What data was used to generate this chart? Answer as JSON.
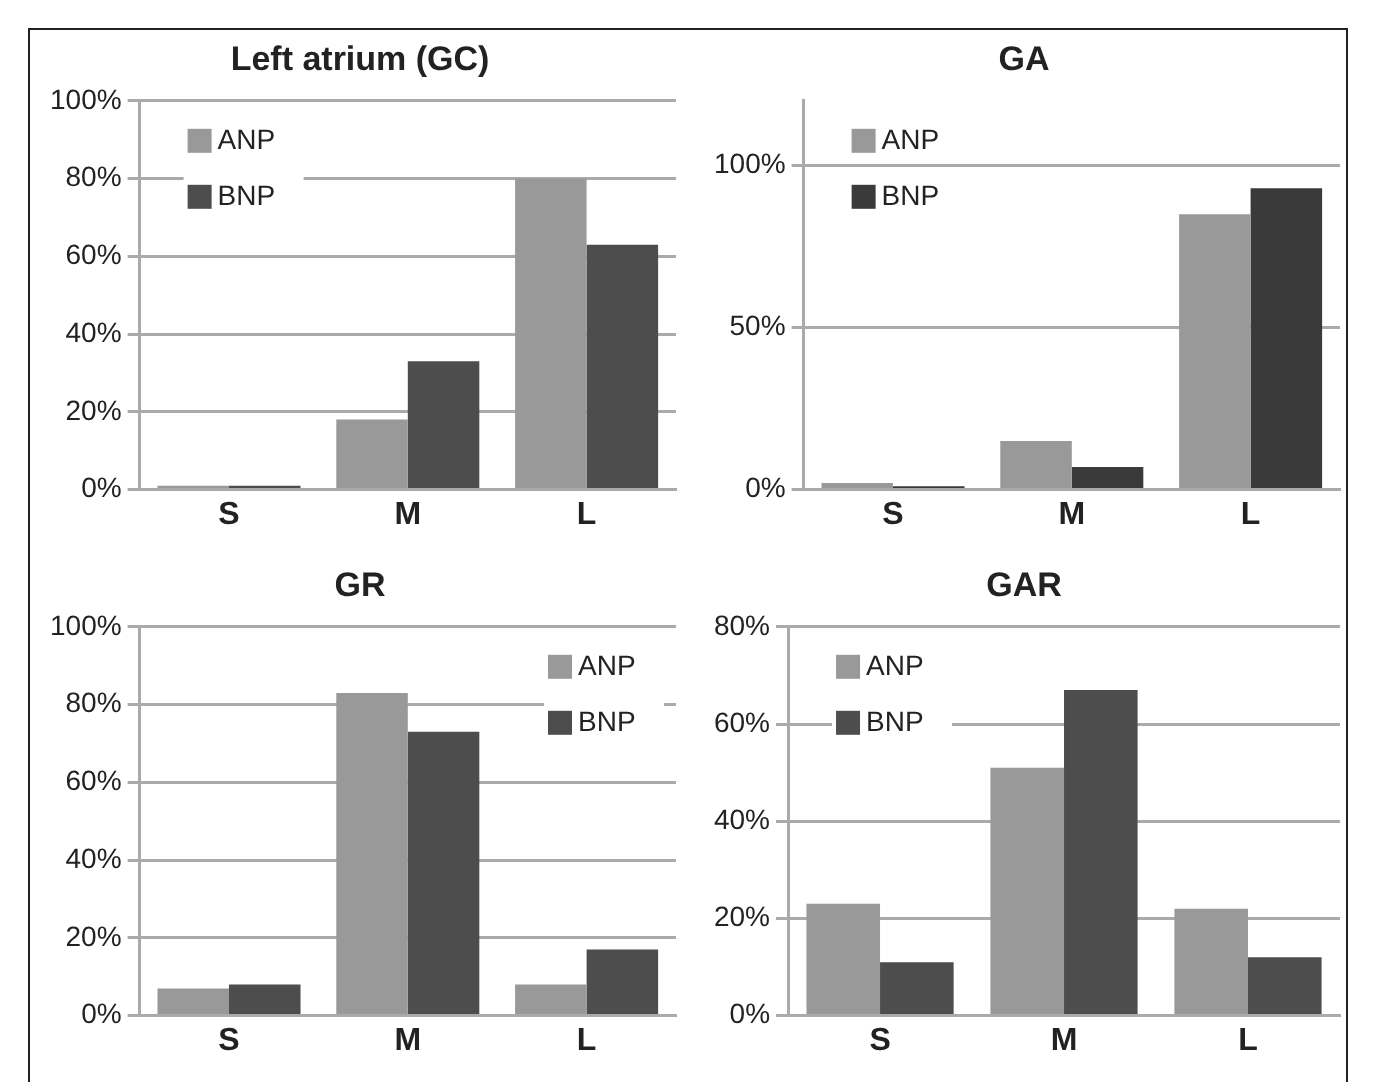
{
  "chart_data": [
    {
      "type": "bar",
      "title": "Left atrium (GC)",
      "categories": [
        "S",
        "M",
        "L"
      ],
      "series": [
        {
          "name": "ANP",
          "color": "#999999",
          "values": [
            1,
            18,
            80
          ]
        },
        {
          "name": "BNP",
          "color": "#4d4d4d",
          "values": [
            1,
            33,
            63
          ]
        }
      ],
      "ylim": [
        0,
        100
      ],
      "yticks": [
        {
          "value": 0,
          "label": "0%"
        },
        {
          "value": 20,
          "label": "20%"
        },
        {
          "value": 40,
          "label": "40%"
        },
        {
          "value": 60,
          "label": "60%"
        },
        {
          "value": 80,
          "label": "80%"
        },
        {
          "value": 100,
          "label": "100%"
        }
      ],
      "grid": "y",
      "legend": "top left"
    },
    {
      "type": "bar",
      "title": "GA",
      "categories": [
        "S",
        "M",
        "L"
      ],
      "series": [
        {
          "name": "ANP",
          "color": "#999999",
          "values": [
            2,
            15,
            85
          ]
        },
        {
          "name": "BNP",
          "color": "#3a3a3a",
          "values": [
            1,
            7,
            93
          ]
        }
      ],
      "ylim": [
        0,
        120
      ],
      "yticks": [
        {
          "value": 0,
          "label": "0%"
        },
        {
          "value": 50,
          "label": "50%"
        },
        {
          "value": 100,
          "label": "100%"
        }
      ],
      "grid": "y",
      "legend": "top left"
    },
    {
      "type": "bar",
      "title": "GR",
      "categories": [
        "S",
        "M",
        "L"
      ],
      "series": [
        {
          "name": "ANP",
          "color": "#999999",
          "values": [
            7,
            83,
            8
          ]
        },
        {
          "name": "BNP",
          "color": "#4d4d4d",
          "values": [
            8,
            73,
            17
          ]
        }
      ],
      "ylim": [
        0,
        100
      ],
      "yticks": [
        {
          "value": 0,
          "label": "0%"
        },
        {
          "value": 20,
          "label": "20%"
        },
        {
          "value": 40,
          "label": "40%"
        },
        {
          "value": 60,
          "label": "60%"
        },
        {
          "value": 80,
          "label": "80%"
        },
        {
          "value": 100,
          "label": "100%"
        }
      ],
      "grid": "y",
      "legend": "top right"
    },
    {
      "type": "bar",
      "title": "GAR",
      "categories": [
        "S",
        "M",
        "L"
      ],
      "series": [
        {
          "name": "ANP",
          "color": "#999999",
          "values": [
            23,
            51,
            22
          ]
        },
        {
          "name": "BNP",
          "color": "#4d4d4d",
          "values": [
            11,
            67,
            12
          ]
        }
      ],
      "ylim": [
        0,
        80
      ],
      "yticks": [
        {
          "value": 0,
          "label": "0%"
        },
        {
          "value": 20,
          "label": "20%"
        },
        {
          "value": 40,
          "label": "40%"
        },
        {
          "value": 60,
          "label": "60%"
        },
        {
          "value": 80,
          "label": "80%"
        }
      ],
      "grid": "y",
      "legend": "top left"
    }
  ]
}
